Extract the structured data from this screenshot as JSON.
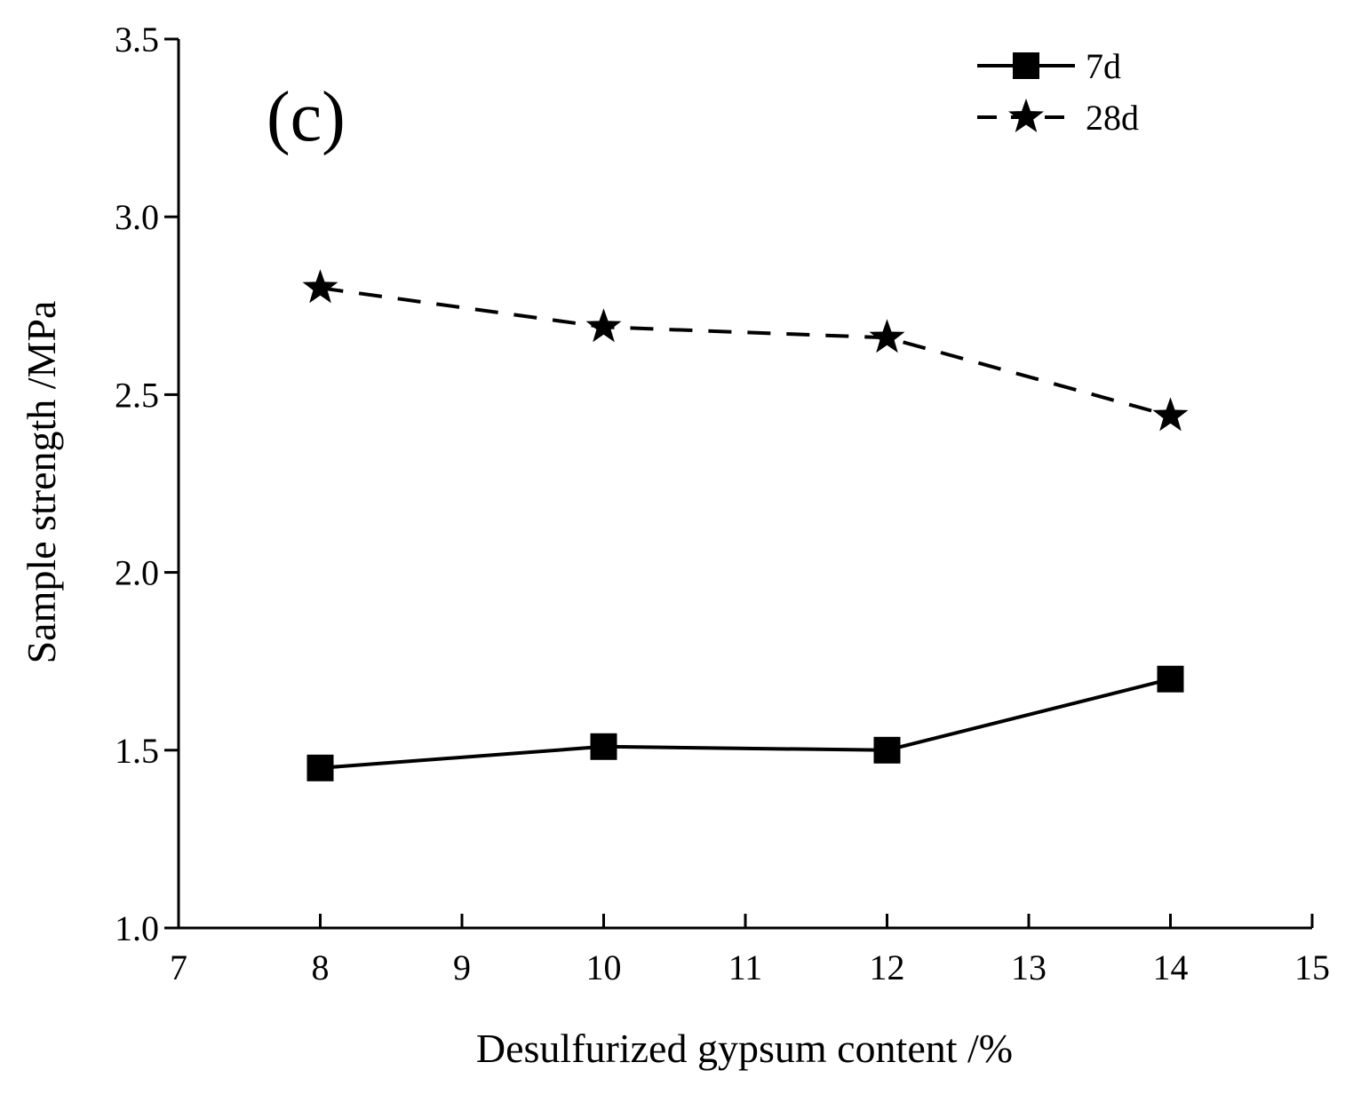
{
  "chart_data": {
    "type": "line",
    "panel_label": "(c)",
    "xlabel": "Desulfurized gypsum content /%",
    "ylabel": "Sample strength /MPa",
    "xlim": [
      7,
      15
    ],
    "ylim": [
      1.0,
      3.5
    ],
    "x_ticks": [
      7,
      8,
      9,
      10,
      11,
      12,
      13,
      14,
      15
    ],
    "x_tick_labels": [
      "7",
      "8",
      "9",
      "10",
      "11",
      "12",
      "13",
      "14",
      "15"
    ],
    "y_ticks": [
      1.0,
      1.5,
      2.0,
      2.5,
      3.0,
      3.5
    ],
    "y_tick_labels": [
      "1.0",
      "1.5",
      "2.0",
      "2.5",
      "3.0",
      "3.5"
    ],
    "legend_position": "top-right",
    "x": [
      8,
      10,
      12,
      14
    ],
    "series": [
      {
        "name": "7d",
        "marker": "square",
        "line_style": "solid",
        "values": [
          1.45,
          1.51,
          1.5,
          1.7
        ]
      },
      {
        "name": "28d",
        "marker": "star",
        "line_style": "dashed",
        "values": [
          2.8,
          2.69,
          2.66,
          2.44
        ]
      }
    ],
    "grid": false
  },
  "colors": {
    "line": "#000000",
    "background": "#ffffff"
  }
}
